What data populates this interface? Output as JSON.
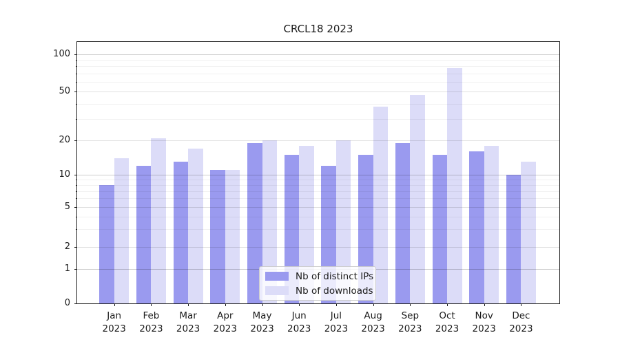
{
  "chart_data": {
    "type": "bar",
    "title": "CRCL18 2023",
    "categories": [
      "Jan",
      "Feb",
      "Mar",
      "Apr",
      "May",
      "Jun",
      "Jul",
      "Aug",
      "Sep",
      "Oct",
      "Nov",
      "Dec"
    ],
    "year": "2023",
    "series": [
      {
        "name": "Nb of distinct IPs",
        "color": "#9a9aef",
        "values": [
          8,
          12,
          13,
          11,
          19,
          15,
          12,
          15,
          19,
          15,
          16,
          10
        ]
      },
      {
        "name": "Nb of downloads",
        "color": "#dcdcf8",
        "values": [
          14,
          21,
          17,
          11,
          20,
          18,
          20,
          38,
          47,
          77,
          18,
          13
        ]
      }
    ],
    "yscale": "symlog",
    "yticks": [
      0,
      1,
      2,
      5,
      10,
      20,
      50,
      100
    ],
    "minor_yticks": [
      3,
      4,
      6,
      7,
      8,
      9,
      30,
      40,
      60,
      70,
      80,
      90
    ],
    "ylim": [
      0,
      120
    ],
    "grid": "both",
    "legend_position": "lower center",
    "colors": {
      "distinct_ips": "#9a9aef",
      "downloads": "#dcdcf8",
      "axis": "#1a1a1a",
      "grid_major": "#c9c9c9",
      "grid_minor": "#ececec"
    }
  }
}
